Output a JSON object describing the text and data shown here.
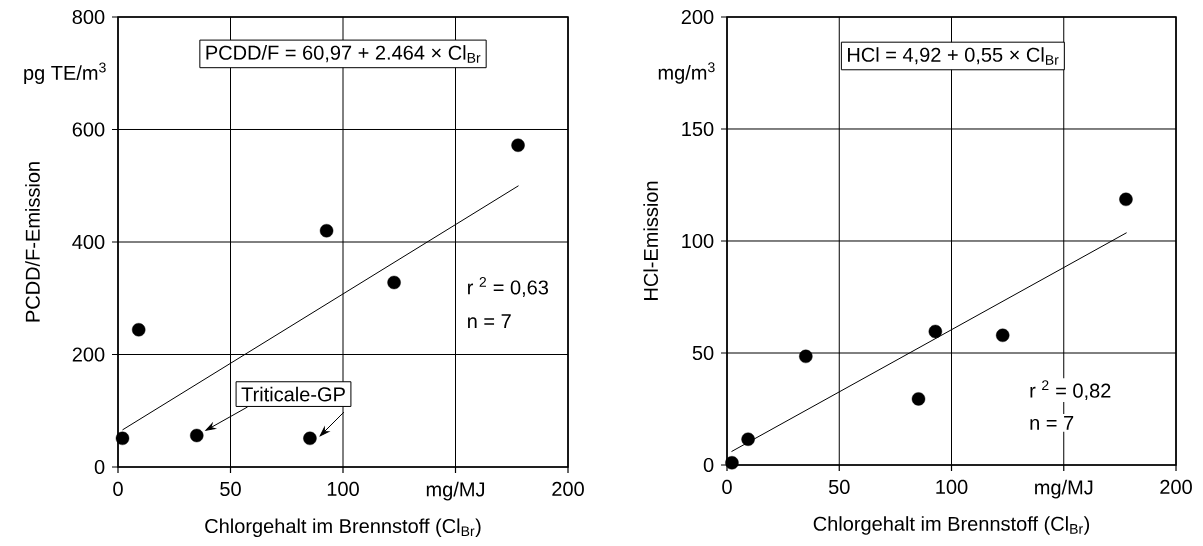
{
  "chart_data": [
    {
      "type": "scatter",
      "xlabel": "Chlorgehalt im Brennstoff (Cl$_{Br}$)",
      "ylabel": "PCDD/F-Emission",
      "xlim": [
        0,
        200
      ],
      "ylim": [
        0,
        800
      ],
      "xticks": [
        0,
        50,
        100,
        {
          "value": 150,
          "label": "mg/MJ"
        },
        200
      ],
      "yticks": [
        0,
        200,
        400,
        600,
        800
      ],
      "grid": true,
      "annotations": [
        "pg TE/m$^{3}$",
        "PCDD/F = 60,97 + 2.464 × Cl$_{Br}$",
        "r $^{2}$ = 0,63",
        "n   = 7",
        {
          "text": "Triticale-GP",
          "x": 35,
          "y": 56
        }
      ],
      "series": [
        {
          "color": "#000000",
          "marker": "circle",
          "x": [
            2,
            9.2,
            35,
            85.3,
            92.7,
            122.7,
            177.8
          ],
          "values": [
            51,
            244,
            56,
            51,
            420,
            328,
            572
          ]
        },
        {
          "type": "line",
          "color": "#000000",
          "marker": "none",
          "x": [
            2,
            178
          ],
          "values": [
            66,
            500
          ]
        }
      ]
    },
    {
      "type": "scatter",
      "xlabel": "Chlorgehalt im Brennstoff (Cl$_{Br}$)",
      "ylabel": "HCl-Emission",
      "xlim": [
        0,
        200
      ],
      "ylim": [
        0,
        200
      ],
      "xticks": [
        0,
        50,
        100,
        {
          "value": 150,
          "label": "mg/MJ"
        },
        200
      ],
      "yticks": [
        0,
        50,
        100,
        150,
        200
      ],
      "grid": true,
      "annotations": [
        "mg/m$^{3}$",
        "HCl = 4,92 + 0,55 × Cl$_{Br}$",
        "r $^{2}$ = 0,82",
        "n   = 7"
      ],
      "series": [
        {
          "color": "#000000",
          "marker": "circle",
          "x": [
            2.2,
            9.4,
            35.1,
            85.3,
            92.8,
            122.8,
            177.7
          ],
          "values": [
            1,
            11.5,
            48.5,
            29.5,
            59.6,
            57.9,
            118.6
          ]
        },
        {
          "type": "line",
          "color": "#000000",
          "marker": "none",
          "x": [
            2,
            178
          ],
          "values": [
            6,
            103.7
          ]
        }
      ]
    }
  ]
}
